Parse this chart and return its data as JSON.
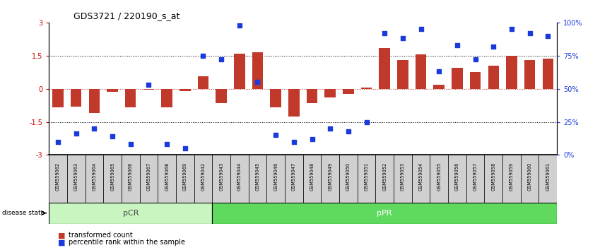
{
  "title": "GDS3721 / 220190_s_at",
  "samples": [
    "GSM559062",
    "GSM559063",
    "GSM559064",
    "GSM559065",
    "GSM559066",
    "GSM559067",
    "GSM559068",
    "GSM559069",
    "GSM559042",
    "GSM559043",
    "GSM559044",
    "GSM559045",
    "GSM559046",
    "GSM559047",
    "GSM559048",
    "GSM559049",
    "GSM559050",
    "GSM559051",
    "GSM559052",
    "GSM559053",
    "GSM559054",
    "GSM559055",
    "GSM559056",
    "GSM559057",
    "GSM559058",
    "GSM559059",
    "GSM559060",
    "GSM559061"
  ],
  "bar_values": [
    -0.85,
    -0.8,
    -1.1,
    -0.15,
    -0.85,
    -0.05,
    -0.85,
    -0.1,
    0.55,
    -0.65,
    1.6,
    1.65,
    -0.85,
    -1.25,
    -0.65,
    -0.4,
    -0.25,
    0.05,
    1.85,
    1.3,
    1.55,
    0.18,
    0.95,
    0.75,
    1.05,
    1.5,
    1.3,
    1.38
  ],
  "percentile_values": [
    10,
    16,
    20,
    14,
    8,
    53,
    8,
    5,
    75,
    72,
    98,
    55,
    15,
    10,
    12,
    20,
    18,
    25,
    92,
    88,
    95,
    63,
    83,
    72,
    82,
    95,
    92,
    90
  ],
  "pCR_count": 9,
  "pPR_count": 19,
  "bar_color": "#c0392b",
  "dot_color": "#1a3adb",
  "pCR_color": "#c8f5c0",
  "pPR_color": "#5fda5f",
  "ylim_left": [
    -3,
    3
  ],
  "ylim_right": [
    0,
    100
  ],
  "background_color": "#ffffff",
  "tick_color_left": "#cc0000",
  "tick_color_right": "#0000cc",
  "xtick_box_color": "#d0d0d0",
  "left_yticks": [
    -3,
    -1.5,
    0,
    1.5,
    3
  ],
  "right_yticks": [
    0,
    25,
    50,
    75,
    100
  ],
  "right_yticklabels": [
    "0%",
    "25%",
    "50%",
    "75%",
    "100%"
  ]
}
